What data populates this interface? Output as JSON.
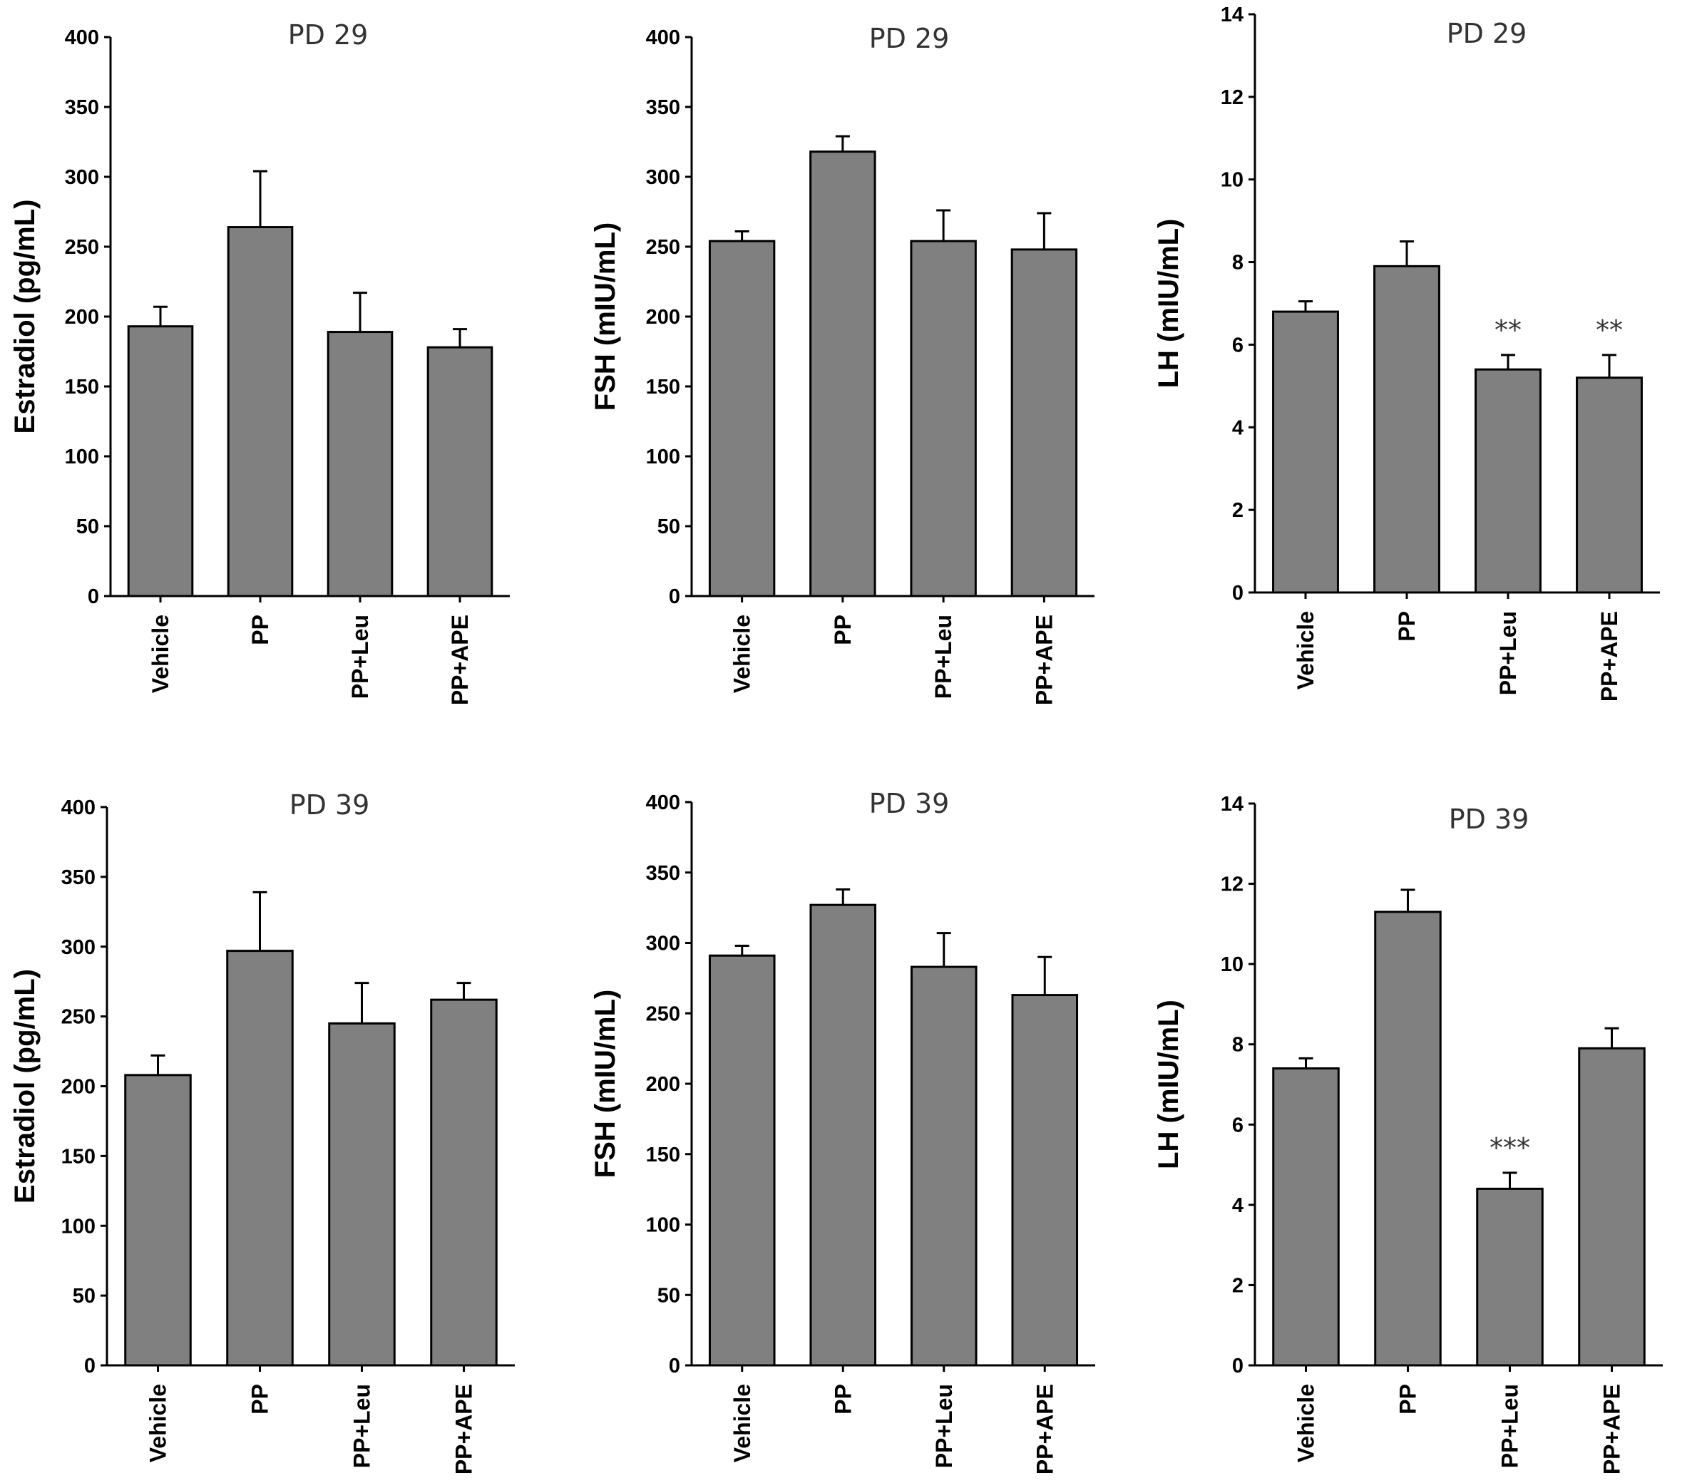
{
  "figure": {
    "rows": 2,
    "cols": 3
  },
  "colors": {
    "bar_fill": "#808080",
    "bar_stroke": "#000000",
    "axis": "#000000",
    "title_text": "#333333"
  },
  "chart_data": [
    {
      "type": "bar",
      "title": "PD 29",
      "ylabel": "Estradiol (pg/mL)",
      "xlabel": "",
      "categories": [
        "Vehicle",
        "PP",
        "PP+Leu",
        "PP+APE"
      ],
      "values": [
        193,
        264,
        189,
        178
      ],
      "errors": [
        14,
        40,
        28,
        13
      ],
      "annotations": [
        "",
        "",
        "",
        ""
      ],
      "ylim": [
        0,
        400
      ],
      "yticks": [
        "0",
        "50",
        "100",
        "150",
        "200",
        "250",
        "300",
        "350",
        "400"
      ]
    },
    {
      "type": "bar",
      "title": "PD 29",
      "ylabel": "FSH (mIU/mL)",
      "xlabel": "",
      "categories": [
        "Vehicle",
        "PP",
        "PP+Leu",
        "PP+APE"
      ],
      "values": [
        254,
        318,
        254,
        248
      ],
      "errors": [
        7,
        11,
        22,
        26
      ],
      "annotations": [
        "",
        "",
        "",
        ""
      ],
      "ylim": [
        0,
        400
      ],
      "yticks": [
        "0",
        "50",
        "100",
        "150",
        "200",
        "250",
        "300",
        "350",
        "400"
      ]
    },
    {
      "type": "bar",
      "title": "PD 29",
      "ylabel": "LH (mIU/mL)",
      "xlabel": "",
      "categories": [
        "Vehicle",
        "PP",
        "PP+Leu",
        "PP+APE"
      ],
      "values": [
        6.8,
        7.9,
        5.4,
        5.2
      ],
      "errors": [
        0.25,
        0.6,
        0.35,
        0.55
      ],
      "annotations": [
        "",
        "",
        "**",
        "**"
      ],
      "ylim": [
        0,
        14
      ],
      "yticks": [
        "0",
        "2",
        "4",
        "6",
        "8",
        "10",
        "12",
        "14"
      ]
    },
    {
      "type": "bar",
      "title": "PD 39",
      "ylabel": "Estradiol (pg/mL)",
      "xlabel": "",
      "categories": [
        "Vehicle",
        "PP",
        "PP+Leu",
        "PP+APE"
      ],
      "values": [
        208,
        297,
        245,
        262
      ],
      "errors": [
        14,
        42,
        29,
        12
      ],
      "annotations": [
        "",
        "",
        "",
        ""
      ],
      "ylim": [
        0,
        400
      ],
      "yticks": [
        "0",
        "50",
        "100",
        "150",
        "200",
        "250",
        "300",
        "350",
        "400"
      ]
    },
    {
      "type": "bar",
      "title": "PD 39",
      "ylabel": "FSH (mIU/mL)",
      "xlabel": "",
      "categories": [
        "Vehicle",
        "PP",
        "PP+Leu",
        "PP+APE"
      ],
      "values": [
        291,
        327,
        283,
        263
      ],
      "errors": [
        7,
        11,
        24,
        27
      ],
      "annotations": [
        "",
        "",
        "",
        ""
      ],
      "ylim": [
        0,
        400
      ],
      "yticks": [
        "0",
        "50",
        "100",
        "150",
        "200",
        "250",
        "300",
        "350",
        "400"
      ]
    },
    {
      "type": "bar",
      "title": "PD 39",
      "ylabel": "LH (mIU/mL)",
      "xlabel": "",
      "categories": [
        "Vehicle",
        "PP",
        "PP+Leu",
        "PP+APE"
      ],
      "values": [
        7.4,
        11.3,
        4.4,
        7.9
      ],
      "errors": [
        0.25,
        0.55,
        0.4,
        0.5
      ],
      "annotations": [
        "",
        "",
        "***",
        ""
      ],
      "ylim": [
        0,
        14
      ],
      "yticks": [
        "0",
        "2",
        "4",
        "6",
        "8",
        "10",
        "12",
        "14"
      ]
    }
  ]
}
